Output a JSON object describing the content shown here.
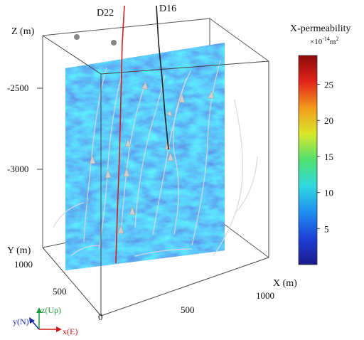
{
  "wells": [
    {
      "name": "D22",
      "color": "#cc2222"
    },
    {
      "name": "D16",
      "color": "#222222"
    }
  ],
  "axes": {
    "z_label": "Z (m)",
    "z_ticks": [
      "-2500",
      "-3000"
    ],
    "y_label": "Y (m)",
    "y_ticks": [
      "1000",
      "500",
      "0"
    ],
    "x_label": "X (m)",
    "x_ticks": [
      "500",
      "1000"
    ]
  },
  "colorbar": {
    "title": "X-permeability",
    "unit_prefix": "×10",
    "unit_exp": "-14",
    "unit_base": "m",
    "unit_pow": "2",
    "ticks": [
      "25",
      "20",
      "15",
      "10",
      "5"
    ],
    "tick_values": [
      25,
      20,
      15,
      10,
      5
    ],
    "range": [
      0,
      29
    ],
    "colors": [
      "#1a1a8c",
      "#1e3fd6",
      "#1f8ef0",
      "#2fd8e0",
      "#4fe070",
      "#d8e82a",
      "#f39a1c",
      "#e2231a",
      "#8c0a0a"
    ]
  },
  "triad": {
    "z_label": "z(Up)",
    "y_label": "y(N)",
    "x_label": "x(E)",
    "z_color": "#1a9a3a",
    "y_color": "#1a2aaa",
    "x_color": "#cc1a1a"
  },
  "colors": {
    "slice_base": "#1a3fcf",
    "streamline": "#d8d8d8",
    "box": "#444444"
  }
}
